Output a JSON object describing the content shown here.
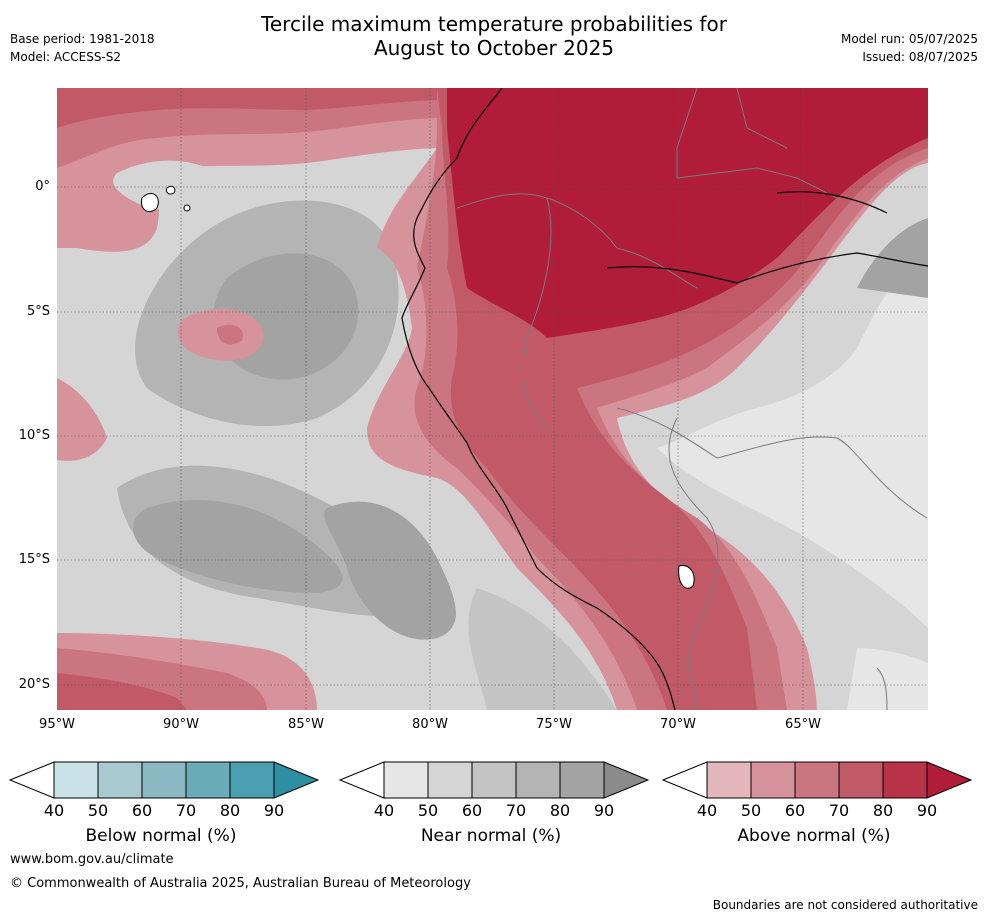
{
  "title_line1": "Tercile maximum temperature probabilities for",
  "title_line2": "August to October 2025",
  "meta_left": {
    "base_period": "Base period: 1981-2018",
    "model": "Model: ACCESS-S2"
  },
  "meta_right": {
    "model_run": "Model run: 05/07/2025",
    "issued": "Issued: 08/07/2025"
  },
  "map": {
    "lat_labels": [
      "0°",
      "5°S",
      "10°S",
      "15°S",
      "20°S"
    ],
    "lon_labels": [
      "95°W",
      "90°W",
      "85°W",
      "80°W",
      "75°W",
      "70°W",
      "65°W"
    ]
  },
  "legends": [
    {
      "title": "Below normal (%)",
      "ticks": [
        "40",
        "50",
        "60",
        "70",
        "80",
        "90"
      ],
      "colors": [
        "#ffffff",
        "#c9e2e7",
        "#a8c9cf",
        "#8ab8c3",
        "#6aabb7",
        "#4aa0b2",
        "#2e8ea2"
      ]
    },
    {
      "title": "Near normal (%)",
      "ticks": [
        "40",
        "50",
        "60",
        "70",
        "80",
        "90"
      ],
      "colors": [
        "#ffffff",
        "#e6e6e6",
        "#d5d5d5",
        "#c4c4c4",
        "#b4b4b4",
        "#a3a3a3",
        "#8a8a8a"
      ]
    },
    {
      "title": "Above normal (%)",
      "ticks": [
        "40",
        "50",
        "60",
        "70",
        "80",
        "90"
      ],
      "colors": [
        "#ffffff",
        "#e4b7bd",
        "#d6939b",
        "#ca7580",
        "#c15a66",
        "#b83348",
        "#b11c38"
      ]
    }
  ],
  "footer": {
    "url": "www.bom.gov.au/climate",
    "copyright": "© Commonwealth of Australia 2025, Australian Bureau of Meteorology",
    "note": "Boundaries are not considered authoritative"
  }
}
